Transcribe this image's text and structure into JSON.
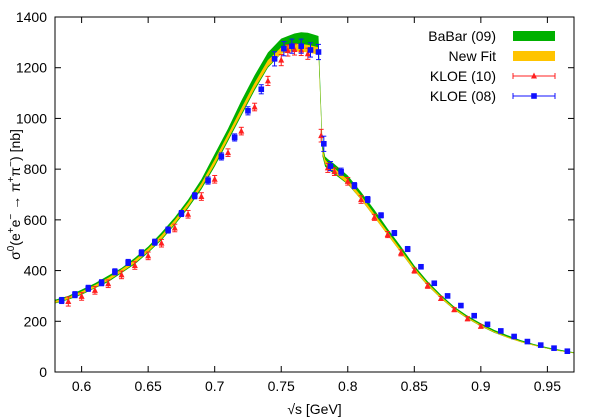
{
  "chart_data": {
    "type": "line",
    "title": "",
    "xlabel": "√s [GeV]",
    "ylabel_parts": [
      "σ",
      "0",
      "(e",
      "+",
      "e",
      "−",
      " → π",
      "+",
      "π",
      "−",
      ") [nb]"
    ],
    "xlim": [
      0.58,
      0.97
    ],
    "ylim": [
      0,
      1400
    ],
    "x_ticks": [
      0.6,
      0.65,
      0.7,
      0.75,
      0.8,
      0.85,
      0.9,
      0.95
    ],
    "x_tick_labels": [
      "0.6",
      "0.65",
      "0.7",
      "0.75",
      "0.8",
      "0.85",
      "0.9",
      "0.95"
    ],
    "y_ticks": [
      0,
      200,
      400,
      600,
      800,
      1000,
      1200,
      1400
    ],
    "y_tick_labels": [
      "0",
      "200",
      "400",
      "600",
      "800",
      "1000",
      "1200",
      "1400"
    ],
    "legend_position": "top-right",
    "grid": false,
    "series": [
      {
        "name": "BaBar (09)",
        "kind": "band",
        "color": "#00b000",
        "x": [
          0.58,
          0.59,
          0.6,
          0.61,
          0.62,
          0.63,
          0.64,
          0.65,
          0.66,
          0.67,
          0.68,
          0.69,
          0.7,
          0.71,
          0.72,
          0.73,
          0.74,
          0.75,
          0.755,
          0.76,
          0.765,
          0.77,
          0.775,
          0.778,
          0.781,
          0.783,
          0.785,
          0.79,
          0.8,
          0.81,
          0.82,
          0.83,
          0.84,
          0.85,
          0.86,
          0.87,
          0.88,
          0.89,
          0.9,
          0.91,
          0.92,
          0.93,
          0.94,
          0.95,
          0.96,
          0.97
        ],
        "lo": [
          270,
          285,
          305,
          330,
          355,
          390,
          425,
          470,
          520,
          580,
          645,
          720,
          810,
          910,
          1010,
          1110,
          1200,
          1255,
          1265,
          1270,
          1270,
          1268,
          1262,
          1255,
          850,
          810,
          800,
          780,
          740,
          680,
          610,
          540,
          470,
          400,
          340,
          290,
          245,
          210,
          180,
          155,
          135,
          118,
          104,
          92,
          82,
          74
        ],
        "hi": [
          285,
          300,
          325,
          350,
          380,
          410,
          450,
          495,
          550,
          610,
          680,
          760,
          860,
          960,
          1070,
          1170,
          1260,
          1315,
          1325,
          1335,
          1340,
          1338,
          1330,
          1325,
          900,
          850,
          840,
          820,
          775,
          710,
          640,
          565,
          495,
          420,
          358,
          305,
          258,
          222,
          192,
          166,
          145,
          126,
          110,
          97,
          87,
          78
        ]
      },
      {
        "name": "New Fit",
        "kind": "band",
        "color": "#ffc400",
        "x": [
          0.58,
          0.59,
          0.6,
          0.61,
          0.62,
          0.63,
          0.64,
          0.65,
          0.66,
          0.67,
          0.68,
          0.69,
          0.7,
          0.71,
          0.72,
          0.73,
          0.74,
          0.75,
          0.755,
          0.76,
          0.765,
          0.77,
          0.775,
          0.778,
          0.781,
          0.783,
          0.785,
          0.79,
          0.8,
          0.81,
          0.82,
          0.83,
          0.84,
          0.85,
          0.86,
          0.87,
          0.88,
          0.89,
          0.9,
          0.91,
          0.92,
          0.93,
          0.94,
          0.95,
          0.96,
          0.97
        ],
        "lo": [
          272,
          288,
          308,
          333,
          360,
          393,
          430,
          474,
          525,
          585,
          652,
          728,
          818,
          918,
          1018,
          1118,
          1205,
          1255,
          1262,
          1265,
          1264,
          1260,
          1255,
          1250,
          860,
          820,
          808,
          785,
          742,
          680,
          610,
          540,
          470,
          401,
          341,
          291,
          246,
          211,
          181,
          156,
          135,
          118,
          104,
          92,
          82,
          74
        ],
        "hi": [
          280,
          296,
          318,
          343,
          372,
          405,
          442,
          487,
          540,
          600,
          668,
          745,
          838,
          938,
          1040,
          1140,
          1230,
          1280,
          1290,
          1294,
          1294,
          1290,
          1285,
          1280,
          880,
          838,
          826,
          803,
          758,
          695,
          624,
          553,
          482,
          411,
          350,
          298,
          252,
          216,
          186,
          160,
          139,
          121,
          107,
          94,
          84,
          76
        ]
      },
      {
        "name": "KLOE (10)",
        "kind": "points",
        "color": "#ff2020",
        "marker": "triangle",
        "x": [
          0.59,
          0.6,
          0.61,
          0.62,
          0.63,
          0.64,
          0.65,
          0.66,
          0.67,
          0.68,
          0.69,
          0.7,
          0.71,
          0.72,
          0.73,
          0.74,
          0.75,
          0.755,
          0.76,
          0.765,
          0.77,
          0.78,
          0.785,
          0.79,
          0.8,
          0.81,
          0.82,
          0.83,
          0.84,
          0.85,
          0.86,
          0.87,
          0.88,
          0.89,
          0.9
        ],
        "y": [
          278,
          298,
          322,
          348,
          383,
          420,
          458,
          508,
          568,
          622,
          692,
          760,
          865,
          950,
          1045,
          1148,
          1230,
          1268,
          1272,
          1270,
          1255,
          932,
          805,
          790,
          752,
          680,
          610,
          542,
          470,
          400,
          340,
          290,
          246,
          210,
          180
        ],
        "err": [
          18,
          15,
          15,
          15,
          15,
          15,
          15,
          15,
          15,
          15,
          15,
          15,
          15,
          15,
          15,
          18,
          22,
          22,
          22,
          22,
          22,
          25,
          18,
          15,
          15,
          15,
          12,
          12,
          12,
          10,
          10,
          8,
          8,
          8,
          6
        ]
      },
      {
        "name": "KLOE (08)",
        "kind": "points",
        "color": "#1010ff",
        "marker": "square",
        "x": [
          0.585,
          0.595,
          0.605,
          0.615,
          0.625,
          0.635,
          0.645,
          0.655,
          0.665,
          0.675,
          0.685,
          0.695,
          0.705,
          0.715,
          0.725,
          0.735,
          0.745,
          0.752,
          0.758,
          0.765,
          0.772,
          0.778,
          0.782,
          0.787,
          0.795,
          0.805,
          0.815,
          0.825,
          0.835,
          0.845,
          0.855,
          0.865,
          0.875,
          0.885,
          0.895,
          0.905,
          0.915,
          0.925,
          0.935,
          0.945,
          0.955,
          0.965
        ],
        "y": [
          282,
          305,
          330,
          352,
          395,
          432,
          470,
          512,
          560,
          625,
          695,
          755,
          850,
          925,
          1030,
          1115,
          1235,
          1275,
          1285,
          1285,
          1270,
          1262,
          900,
          812,
          790,
          735,
          680,
          618,
          548,
          485,
          415,
          350,
          300,
          262,
          222,
          188,
          162,
          140,
          120,
          106,
          94,
          82
        ],
        "err": [
          12,
          12,
          12,
          12,
          12,
          12,
          12,
          12,
          12,
          12,
          12,
          14,
          14,
          14,
          16,
          18,
          28,
          28,
          28,
          28,
          28,
          30,
          30,
          18,
          14,
          12,
          12,
          10,
          10,
          10,
          8,
          8,
          8,
          6,
          6,
          5,
          5,
          4,
          4,
          4,
          3,
          3
        ]
      }
    ]
  }
}
